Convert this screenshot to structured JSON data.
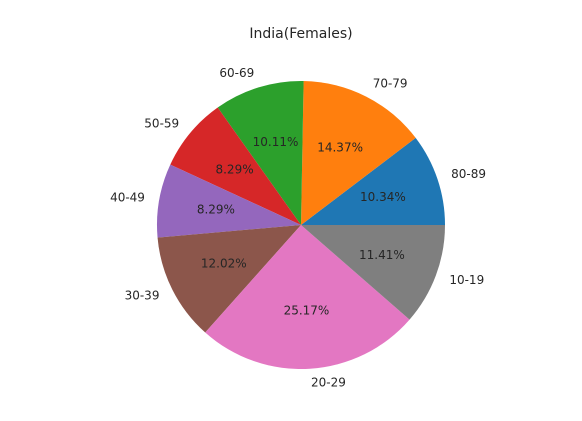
{
  "chart_data": {
    "type": "pie",
    "title": "India(Females)",
    "start_angle_deg": 0,
    "direction": "counterclockwise",
    "slices": [
      {
        "label": "80-89",
        "value": 10.34,
        "pct_label": "10.34%",
        "color": "#1f77b4"
      },
      {
        "label": "70-79",
        "value": 14.37,
        "pct_label": "14.37%",
        "color": "#ff7f0e"
      },
      {
        "label": "60-69",
        "value": 10.11,
        "pct_label": "10.11%",
        "color": "#2ca02c"
      },
      {
        "label": "50-59",
        "value": 8.29,
        "pct_label": "8.29%",
        "color": "#d62728"
      },
      {
        "label": "40-49",
        "value": 8.29,
        "pct_label": "8.29%",
        "color": "#9467bd"
      },
      {
        "label": "30-39",
        "value": 12.02,
        "pct_label": "12.02%",
        "color": "#8c564b"
      },
      {
        "label": "20-29",
        "value": 25.17,
        "pct_label": "25.17%",
        "color": "#e377c2"
      },
      {
        "label": "10-19",
        "value": 11.41,
        "pct_label": "11.41%",
        "color": "#7f7f7f"
      }
    ]
  }
}
